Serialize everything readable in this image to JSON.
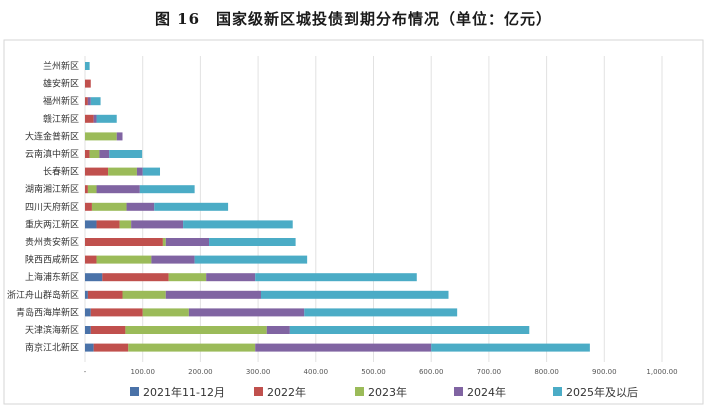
{
  "chart_data": {
    "type": "bar",
    "orientation": "horizontal",
    "stacked": true,
    "title": "图 16　国家级新区城投债到期分布情况（单位：亿元）",
    "xlabel": "",
    "ylabel": "",
    "xlim": [
      0,
      1000
    ],
    "x_ticks": [
      0,
      100,
      200,
      300,
      400,
      500,
      600,
      700,
      800,
      900,
      1000
    ],
    "x_tick_labels": [
      "-",
      "100.00",
      "200.00",
      "300.00",
      "400.00",
      "500.00",
      "600.00",
      "700.00",
      "800.00",
      "900.00",
      "1,000.00"
    ],
    "grid": true,
    "legend_position": "bottom",
    "categories": [
      "兰州新区",
      "雄安新区",
      "福州新区",
      "赣江新区",
      "大连金普新区",
      "云南滇中新区",
      "长春新区",
      "湖南湘江新区",
      "四川天府新区",
      "重庆两江新区",
      "贵州贵安新区",
      "陕西西咸新区",
      "上海浦东新区",
      "浙江舟山群岛新区",
      "青岛西海岸新区",
      "天津滨海新区",
      "南京江北新区"
    ],
    "series": [
      {
        "name": "2021年11-12月",
        "color": "#4a72a8",
        "values": [
          0,
          0,
          0,
          0,
          0,
          0,
          0,
          0,
          0,
          20,
          0,
          0,
          30,
          5,
          10,
          10,
          15
        ]
      },
      {
        "name": "2022年",
        "color": "#c0504d",
        "values": [
          0,
          10,
          5,
          15,
          0,
          8,
          40,
          5,
          12,
          40,
          135,
          20,
          115,
          60,
          90,
          60,
          60
        ]
      },
      {
        "name": "2023年",
        "color": "#9bbb59",
        "values": [
          0,
          0,
          0,
          0,
          55,
          17,
          50,
          15,
          60,
          20,
          5,
          95,
          65,
          75,
          80,
          245,
          220
        ]
      },
      {
        "name": "2024年",
        "color": "#8064a2",
        "values": [
          0,
          0,
          5,
          5,
          10,
          17,
          10,
          75,
          48,
          90,
          75,
          75,
          85,
          165,
          200,
          40,
          305
        ]
      },
      {
        "name": "2025年及以后",
        "color": "#4bacc6",
        "values": [
          8,
          0,
          17,
          35,
          0,
          57,
          30,
          95,
          128,
          190,
          150,
          195,
          280,
          325,
          265,
          415,
          275
        ]
      }
    ]
  }
}
